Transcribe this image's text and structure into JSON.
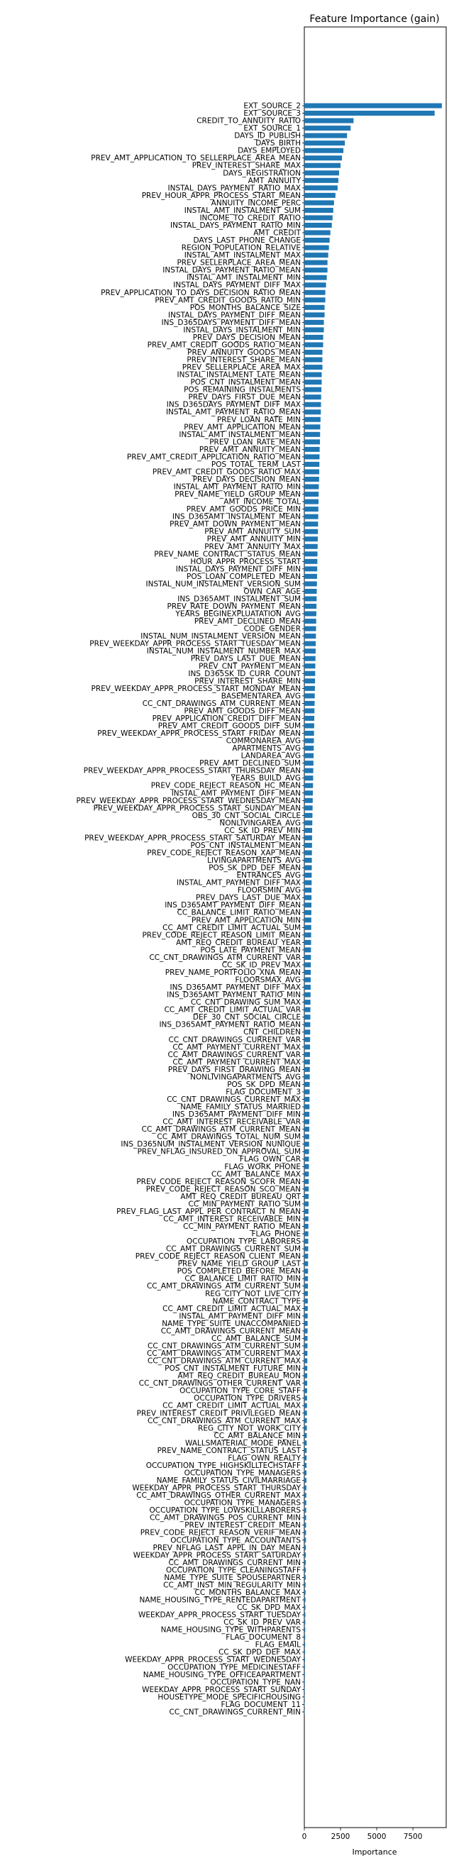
{
  "chart_data": {
    "type": "bar",
    "orientation": "horizontal",
    "title": "Feature Importance (gain)",
    "xlabel": "Importance",
    "ylabel": "",
    "xlim": [
      0,
      9800
    ],
    "xticks": [
      0,
      2500,
      5000,
      7500
    ],
    "grid": false,
    "legend": "none",
    "bar_color": "#1f77b4",
    "categories": [
      "EXT_SOURCE_2",
      "EXT_SOURCE_3",
      "CREDIT_TO_ANNUITY_RATIO",
      "EXT_SOURCE_1",
      "DAYS_ID_PUBLISH",
      "DAYS_BIRTH",
      "DAYS_EMPLOYED",
      "PREV_AMT_APPLICATION_TO_SELLERPLACE_AREA_MEAN",
      "PREV_INTEREST_SHARE_MAX",
      "DAYS_REGISTRATION",
      "AMT_ANNUITY",
      "INSTAL_DAYS_PAYMENT_RATIO_MAX",
      "PREV_HOUR_APPR_PROCESS_START_MEAN",
      "ANNUITY_INCOME_PERC",
      "INSTAL_AMT_INSTALMENT_SUM",
      "INCOME_TO_CREDIT_RATIO",
      "INSTAL_DAYS_PAYMENT_RATIO_MIN",
      "AMT_CREDIT",
      "DAYS_LAST_PHONE_CHANGE",
      "REGION_POPULATION_RELATIVE",
      "INSTAL_AMT_INSTALMENT_MAX",
      "PREV_SELLERPLACE_AREA_MEAN",
      "INSTAL_DAYS_PAYMENT_RATIO_MEAN",
      "INSTAL_AMT_INSTALMENT_MIN",
      "INSTAL_DAYS_PAYMENT_DIFF_MAX",
      "PREV_APPLICATION_TO_DAYS_DECISION_RATIO_MEAN",
      "PREV_AMT_CREDIT_GOODS_RATIO_MIN",
      "POS_MONTHS_BALANCE_SIZE",
      "INSTAL_DAYS_PAYMENT_DIFF_MEAN",
      "INS_D365DAYS_PAYMENT_DIFF_MEAN",
      "INSTAL_DAYS_INSTALMENT_MIN",
      "PREV_DAYS_DECISION_MEAN",
      "PREV_AMT_CREDIT_GOODS_RATIO_MEAN",
      "PREV_ANNUITY_GOODS_MEAN",
      "PREV_INTEREST_SHARE_MEAN",
      "PREV_SELLERPLACE_AREA_MAX",
      "INSTAL_INSTALMENT_LATE_MEAN",
      "POS_CNT_INSTALMENT_MEAN",
      "POS_REMAINING_INSTALMENTS",
      "PREV_DAYS_FIRST_DUE_MEAN",
      "INS_D365DAYS_PAYMENT_DIFF_MAX",
      "INSTAL_AMT_PAYMENT_RATIO_MEAN",
      "PREV_LOAN_RATE_MIN",
      "PREV_AMT_APPLICATION_MEAN",
      "INSTAL_AMT_INSTALMENT_MEAN",
      "PREV_LOAN_RATE_MEAN",
      "PREV_AMT_ANNUITY_MEAN",
      "PREV_AMT_CREDIT_APPLICATION_RATIO_MEAN",
      "POS_TOTAL_TERM_LAST",
      "PREV_AMT_CREDIT_GOODS_RATIO_MAX",
      "PREV_DAYS_DECISION_MEAN",
      "INSTAL_AMT_PAYMENT_RATIO_MIN",
      "PREV_NAME_YIELD_GROUP_MEAN",
      "AMT_INCOME_TOTAL",
      "PREV_AMT_GOODS_PRICE_MIN",
      "INS_D365AMT_INSTALMENT_MEAN",
      "PREV_AMT_DOWN_PAYMENT_MEAN",
      "PREV_AMT_ANNUITY_SUM",
      "PREV_AMT_ANNUITY_MIN",
      "PREV_AMT_ANNUITY_MAX",
      "PREV_NAME_CONTRACT_STATUS_MEAN",
      "HOUR_APPR_PROCESS_START",
      "INSTAL_DAYS_PAYMENT_DIFF_MIN",
      "POS_LOAN_COMPLETED_MEAN",
      "INSTAL_NUM_INSTALMENT_VERSION_SUM",
      "OWN_CAR_AGE",
      "INS_D365AMT_INSTALMENT_SUM",
      "PREV_RATE_DOWN_PAYMENT_MEAN",
      "YEARS_BEGINEXPLUATATION_AVG",
      "PREV_AMT_DECLINED_MEAN",
      "CODE_GENDER",
      "INSTAL_NUM_INSTALMENT_VERSION_MEAN",
      "PREV_WEEKDAY_APPR_PROCESS_START_TUESDAY_MEAN",
      "INSTAL_NUM_INSTALMENT_NUMBER_MAX",
      "PREV_DAYS_LAST_DUE_MEAN",
      "PREV_CNT_PAYMENT_MEAN",
      "INS_D365SK_ID_CURR_COUNT",
      "PREV_INTEREST_SHARE_MIN",
      "PREV_WEEKDAY_APPR_PROCESS_START_MONDAY_MEAN",
      "BASEMENTAREA_AVG",
      "CC_CNT_DRAWINGS_ATM_CURRENT_MEAN",
      "PREV_AMT_GOODS_DIFF_MEAN",
      "PREV_APPLICATION_CREDIT_DIFF_MEAN",
      "PREV_AMT_CREDIT_GOODS_DIFF_SUM",
      "PREV_WEEKDAY_APPR_PROCESS_START_FRIDAY_MEAN",
      "COMMONAREA_AVG",
      "APARTMENTS_AVG",
      "LANDAREA_AVG",
      "PREV_AMT_DECLINED_SUM",
      "PREV_WEEKDAY_APPR_PROCESS_START_THURSDAY_MEAN",
      "YEARS_BUILD_AVG",
      "PREV_CODE_REJECT_REASON_HC_MEAN",
      "INSTAL_AMT_PAYMENT_DIFF_MEAN",
      "PREV_WEEKDAY_APPR_PROCESS_START_WEDNESDAY_MEAN",
      "PREV_WEEKDAY_APPR_PROCESS_START_SUNDAY_MEAN",
      "OBS_30_CNT_SOCIAL_CIRCLE",
      "NONLIVINGAREA_AVG",
      "CC_SK_ID_PREV_MIN",
      "PREV_WEEKDAY_APPR_PROCESS_START_SATURDAY_MEAN",
      "POS_CNT_INSTALMENT_MEAN",
      "PREV_CODE_REJECT_REASON_XAP_MEAN",
      "LIVINGAPARTMENTS_AVG",
      "POS_SK_DPD_DEF_MEAN",
      "ENTRANCES_AVG",
      "INSTAL_AMT_PAYMENT_DIFF_MAX",
      "FLOORSMIN_AVG",
      "PREV_DAYS_LAST_DUE_MAX",
      "INS_D365AMT_PAYMENT_DIFF_MEAN",
      "CC_BALANCE_LIMIT_RATIO_MEAN",
      "PREV_AMT_APPLICATION_MIN",
      "CC_AMT_CREDIT_LIMIT_ACTUAL_SUM",
      "PREV_CODE_REJECT_REASON_LIMIT_MEAN",
      "AMT_REQ_CREDIT_BUREAU_YEAR",
      "POS_LATE_PAYMENT_MEAN",
      "CC_CNT_DRAWINGS_ATM_CURRENT_VAR",
      "CC_SK_ID_PREV_MAX",
      "PREV_NAME_PORTFOLIO_XNA_MEAN",
      "FLOORSMAX_AVG",
      "INS_D365AMT_PAYMENT_DIFF_MAX",
      "INS_D365AMT_PAYMENT_RATIO_MIN",
      "CC_CNT_DRAWING_SUM_MAX",
      "CC_AMT_CREDIT_LIMIT_ACTUAL_VAR",
      "DEF_30_CNT_SOCIAL_CIRCLE",
      "INS_D365AMT_PAYMENT_RATIO_MEAN",
      "CNT_CHILDREN",
      "CC_CNT_DRAWINGS_CURRENT_VAR",
      "CC_AMT_PAYMENT_CURRENT_MAX",
      "CC_AMT_DRAWINGS_CURRENT_VAR",
      "CC_AMT_PAYMENT_CURRENT_MAX",
      "PREV_DAYS_FIRST_DRAWING_MEAN",
      "NONLIVINGAPARTMENTS_AVG",
      "POS_SK_DPD_MEAN",
      "FLAG_DOCUMENT_3",
      "CC_CNT_DRAWINGS_CURRENT_MAX",
      "NAME_FAMILY_STATUS_MARRIED",
      "INS_D365AMT_PAYMENT_DIFF_MIN",
      "CC_AMT_INTEREST_RECEIVABLE_VAR",
      "CC_AMT_DRAWINGS_ATM_CURRENT_MEAN",
      "CC_AMT_DRAWINGS_TOTAL_NUM_SUM",
      "INS_D365NUM_INSTALMENT_VERSION_NUNIQUE",
      "PREV_NFLAG_INSURED_ON_APPROVAL_SUM",
      "FLAG_OWN_CAR",
      "FLAG_WORK_PHONE",
      "CC_AMT_BALANCE_MAX",
      "PREV_CODE_REJECT_REASON_SCOFR_MEAN",
      "PREV_CODE_REJECT_REASON_SCO_MEAN",
      "AMT_REQ_CREDIT_BUREAU_QRT",
      "CC_MIN_PAYMENT_RATIO_SUM",
      "PREV_FLAG_LAST_APPL_PER_CONTRACT_N_MEAN",
      "CC_AMT_INTEREST_RECEIVABLE_MIN",
      "CC_MIN_PAYMENT_RATIO_MEAN",
      "FLAG_PHONE",
      "OCCUPATION_TYPE_LABORERS",
      "CC_AMT_DRAWINGS_CURRENT_SUM",
      "PREV_CODE_REJECT_REASON_CLIENT_MEAN",
      "PREV_NAME_YIELD_GROUP_LAST",
      "POS_COMPLETED_BEFORE_MEAN",
      "CC_BALANCE_LIMIT_RATIO_MIN",
      "CC_AMT_DRAWINGS_ATM_CURRENT_SUM",
      "REG_CITY_NOT_LIVE_CITY",
      "NAME_CONTRACT_TYPE",
      "CC_AMT_CREDIT_LIMIT_ACTUAL_MAX",
      "INSTAL_AMT_PAYMENT_DIFF_MIN",
      "NAME_TYPE_SUITE_UNACCOMPANIED",
      "CC_AMT_DRAWINGS_CURRENT_MEAN",
      "CC_AMT_BALANCE_SUM",
      "CC_CNT_DRAWINGS_ATM_CURRENT_SUM",
      "CC_AMT_DRAWINGS_ATM_CURRENT_MAX",
      "CC_CNT_DRAWINGS_ATM_CURRENT_MAX",
      "POS_CNT_INSTALMENT_FUTURE_MIN",
      "AMT_REQ_CREDIT_BUREAU_MON",
      "CC_CNT_DRAWINGS_OTHER_CURRENT_VAR",
      "OCCUPATION_TYPE_CORE_STAFF",
      "OCCUPATION_TYPE_DRIVERS",
      "CC_AMT_CREDIT_LIMIT_ACTUAL_MAX",
      "PREV_INTEREST_CREDIT_PRIVILEGED_MEAN",
      "CC_CNT_DRAWINGS_ATM_CURRENT_MAX",
      "REG_CITY_NOT_WORK_CITY",
      "CC_AMT_BALANCE_MIN",
      "WALLSMATERIAL_MODE_PANEL",
      "PREV_NAME_CONTRACT_STATUS_LAST",
      "FLAG_OWN_REALTY",
      "OCCUPATION_TYPE_HIGHSKILLTECHSTAFF",
      "OCCUPATION_TYPE_MANAGERS",
      "NAME_FAMILY_STATUS_CIVILMARRIAGE",
      "WEEKDAY_APPR_PROCESS_START_THURSDAY",
      "CC_AMT_DRAWINGS_OTHER_CURRENT_MAX",
      "OCCUPATION_TYPE_MANAGERS",
      "OCCUPATION_TYPE_LOWSKILLLABORERS",
      "CC_AMT_DRAWINGS_POS_CURRENT_MIN",
      "PREV_INTEREST_CREDIT_MEAN",
      "PREV_CODE_REJECT_REASON_VERIF_MEAN",
      "OCCUPATION_TYPE_ACCOUNTANTS",
      "PREV_NFLAG_LAST_APPL_IN_DAY_MEAN",
      "WEEKDAY_APPR_PROCESS_START_SATURDAY",
      "CC_AMT_DRAWINGS_CURRENT_MIN",
      "OCCUPATION_TYPE_CLEANINGSTAFF",
      "NAME_TYPE_SUITE_SPOUSEPARTNER",
      "CC_AMT_INST_MIN_REGULARITY_MIN",
      "CC_MONTHS_BALANCE_MAX",
      "NAME_HOUSING_TYPE_RENTEDAPARTMENT",
      "CC_SK_DPD_MAX",
      "WEEKDAY_APPR_PROCESS_START_TUESDAY",
      "CC_SK_ID_PREV_VAR",
      "NAME_HOUSING_TYPE_WITHPARENTS",
      "FLAG_DOCUMENT_8",
      "FLAG_EMAIL",
      "CC_SK_DPD_DEF_MAX",
      "WEEKDAY_APPR_PROCESS_START_WEDNESDAY",
      "OCCUPATION_TYPE_MEDICINESTAFF",
      "NAME_HOUSING_TYPE_OFFICEAPARTMENT",
      "OCCUPATION_TYPE_NAN",
      "WEEKDAY_APPR_PROCESS_START_SUNDAY",
      "HOUSETYPE_MODE_SPECIFICHOUSING",
      "FLAG_DOCUMENT_11",
      "CC_CNT_DRAWINGS_CURRENT_MIN"
    ],
    "values": [
      9500,
      9000,
      3400,
      3200,
      2950,
      2800,
      2700,
      2600,
      2500,
      2400,
      2350,
      2300,
      2150,
      2050,
      2000,
      1950,
      1900,
      1800,
      1750,
      1700,
      1650,
      1600,
      1600,
      1550,
      1500,
      1450,
      1450,
      1400,
      1400,
      1350,
      1350,
      1300,
      1300,
      1250,
      1250,
      1250,
      1200,
      1200,
      1180,
      1160,
      1150,
      1140,
      1120,
      1100,
      1090,
      1080,
      1060,
      1050,
      1040,
      1030,
      1020,
      1000,
      990,
      980,
      970,
      960,
      950,
      940,
      930,
      920,
      910,
      900,
      890,
      880,
      870,
      860,
      850,
      840,
      830,
      820,
      810,
      800,
      790,
      780,
      770,
      760,
      750,
      740,
      730,
      720,
      710,
      700,
      690,
      680,
      670,
      660,
      650,
      640,
      630,
      620,
      610,
      600,
      590,
      580,
      570,
      560,
      550,
      540,
      535,
      530,
      525,
      520,
      515,
      510,
      505,
      500,
      495,
      490,
      485,
      480,
      475,
      470,
      465,
      460,
      455,
      450,
      445,
      440,
      435,
      430,
      425,
      420,
      415,
      410,
      405,
      400,
      395,
      390,
      385,
      380,
      375,
      370,
      365,
      360,
      355,
      350,
      345,
      340,
      335,
      330,
      325,
      320,
      315,
      310,
      305,
      300,
      296,
      292,
      288,
      284,
      280,
      276,
      272,
      268,
      264,
      260,
      256,
      252,
      248,
      244,
      240,
      236,
      232,
      228,
      224,
      220,
      216,
      212,
      208,
      204,
      200,
      196,
      192,
      188,
      184,
      180,
      176,
      172,
      168,
      164,
      160,
      156,
      152,
      148,
      144,
      140,
      136,
      132,
      128,
      124,
      120,
      116,
      112,
      108,
      104,
      100,
      96,
      92,
      88,
      84,
      80,
      76,
      72,
      68,
      64,
      60,
      56,
      52,
      48,
      44,
      40,
      36,
      32,
      28,
      24,
      20
    ]
  }
}
